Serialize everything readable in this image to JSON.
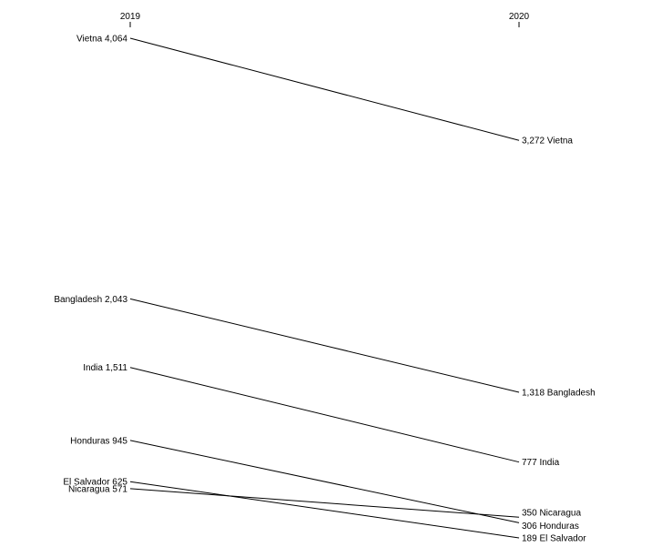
{
  "chart_data": {
    "type": "line",
    "x": [
      "2019",
      "2020"
    ],
    "series": [
      {
        "name": "Vietna",
        "values": [
          4064,
          3272
        ]
      },
      {
        "name": "Bangladesh",
        "values": [
          2043,
          1318
        ]
      },
      {
        "name": "India",
        "values": [
          1511,
          777
        ]
      },
      {
        "name": "Honduras",
        "values": [
          945,
          306
        ]
      },
      {
        "name": "El Salvador",
        "values": [
          625,
          189
        ]
      },
      {
        "name": "Nicaragua",
        "values": [
          571,
          350
        ]
      }
    ],
    "left_labels": [
      "Vietna 4,064",
      "Bangladesh 2,043",
      "India 1,511",
      "Honduras 945",
      "El Salvador 625",
      "Nicaragua 571"
    ],
    "right_labels": [
      "3,272 Vietna",
      "1,318 Bangladesh",
      "777 India",
      "306 Honduras",
      "189 El Salvador",
      "350 Nicaragua"
    ],
    "ylim": [
      189,
      4064
    ],
    "grid": false,
    "legend": "none"
  }
}
